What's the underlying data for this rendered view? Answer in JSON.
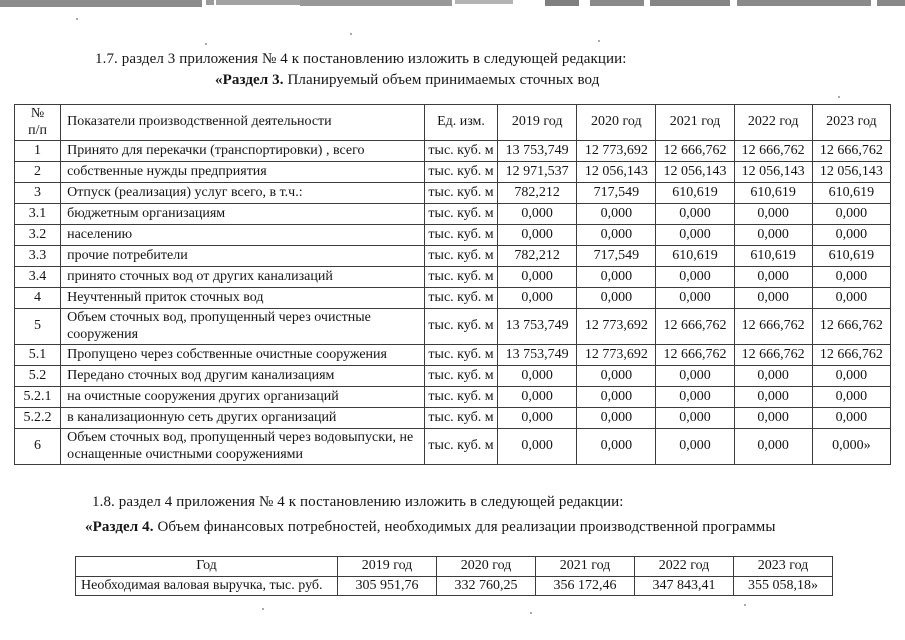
{
  "paragraphs": {
    "p17": "1.7. раздел 3 приложения № 4 к постановлению изложить в следующей редакции:",
    "s3_bold": "«Раздел 3.",
    "s3_rest": " Планируемый объем принимаемых сточных вод",
    "p18": "1.8. раздел 4 приложения № 4 к постановлению изложить в следующей редакции:",
    "s4_bold": "«Раздел 4.",
    "s4_rest": " Объем финансовых потребностей, необходимых для реализации производственной программы"
  },
  "table1": {
    "headers": {
      "num": "№\nп/п",
      "indicator": "Показатели производственной деятельности",
      "unit": "Ед. изм.",
      "years": [
        "2019 год",
        "2020 год",
        "2021 год",
        "2022 год",
        "2023 год"
      ]
    },
    "rows": [
      {
        "num": "1",
        "label": "Принято для перекачки (транспортировки) , всего",
        "unit": "тыс. куб. м",
        "values": [
          "13 753,749",
          "12 773,692",
          "12 666,762",
          "12 666,762",
          "12 666,762"
        ]
      },
      {
        "num": "2",
        "label": "собственные нужды предприятия",
        "unit": "тыс. куб. м",
        "values": [
          "12 971,537",
          "12 056,143",
          "12 056,143",
          "12 056,143",
          "12 056,143"
        ]
      },
      {
        "num": "3",
        "label": "Отпуск (реализация) услуг всего, в т.ч.:",
        "unit": "тыс. куб. м",
        "values": [
          "782,212",
          "717,549",
          "610,619",
          "610,619",
          "610,619"
        ]
      },
      {
        "num": "3.1",
        "label": "бюджетным организациям",
        "unit": "тыс. куб. м",
        "values": [
          "0,000",
          "0,000",
          "0,000",
          "0,000",
          "0,000"
        ]
      },
      {
        "num": "3.2",
        "label": "населению",
        "unit": "тыс. куб. м",
        "values": [
          "0,000",
          "0,000",
          "0,000",
          "0,000",
          "0,000"
        ]
      },
      {
        "num": "3.3",
        "label": "прочие потребители",
        "unit": "тыс. куб. м",
        "values": [
          "782,212",
          "717,549",
          "610,619",
          "610,619",
          "610,619"
        ]
      },
      {
        "num": "3.4",
        "label": "принято сточных вод от других канализаций",
        "unit": "тыс. куб. м",
        "values": [
          "0,000",
          "0,000",
          "0,000",
          "0,000",
          "0,000"
        ]
      },
      {
        "num": "4",
        "label": "Неучтенный приток сточных вод",
        "unit": "тыс. куб. м",
        "values": [
          "0,000",
          "0,000",
          "0,000",
          "0,000",
          "0,000"
        ]
      },
      {
        "num": "5",
        "label": "Объем сточных вод, пропущенный через очистные сооружения",
        "unit": "тыс. куб. м",
        "values": [
          "13 753,749",
          "12 773,692",
          "12 666,762",
          "12 666,762",
          "12 666,762"
        ]
      },
      {
        "num": "5.1",
        "label": "Пропущено через собственные очистные сооружения",
        "unit": "тыс. куб. м",
        "values": [
          "13 753,749",
          "12 773,692",
          "12 666,762",
          "12 666,762",
          "12 666,762"
        ]
      },
      {
        "num": "5.2",
        "label": "Передано сточных вод другим канализациям",
        "unit": "тыс. куб. м",
        "values": [
          "0,000",
          "0,000",
          "0,000",
          "0,000",
          "0,000"
        ]
      },
      {
        "num": "5.2.1",
        "label": "на очистные сооружения других организаций",
        "unit": "тыс. куб. м",
        "values": [
          "0,000",
          "0,000",
          "0,000",
          "0,000",
          "0,000"
        ]
      },
      {
        "num": "5.2.2",
        "label": "в канализационную сеть других организаций",
        "unit": "тыс. куб. м",
        "values": [
          "0,000",
          "0,000",
          "0,000",
          "0,000",
          "0,000"
        ]
      },
      {
        "num": "6",
        "label": "Объем сточных вод, пропущенный через водовыпуски, не оснащенные очистными сооружениями",
        "unit": "тыс. куб. м",
        "values": [
          "0,000",
          "0,000",
          "0,000",
          "0,000",
          "0,000»"
        ]
      }
    ]
  },
  "table2": {
    "headers": [
      "Год",
      "2019 год",
      "2020 год",
      "2021 год",
      "2022 год",
      "2023 год"
    ],
    "row_label": "Необходимая валовая выручка, тыс. руб.",
    "row_values": [
      "305 951,76",
      "332 760,25",
      "356 172,46",
      "347 843,41",
      "355 058,18»"
    ]
  }
}
